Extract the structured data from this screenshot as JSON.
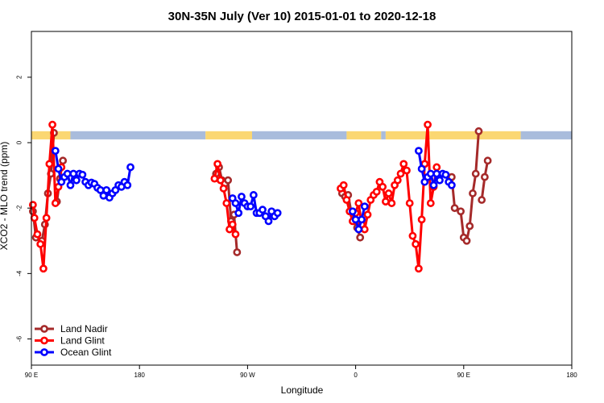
{
  "chart_data": {
    "type": "line",
    "title": "30N-35N July (Ver 10)   2015-01-01 to 2020-12-18",
    "xlabel": "Longitude",
    "ylabel": "XCO2 - MLO trend (ppm)",
    "xlim": [
      -90,
      270
    ],
    "ylim": [
      -6.8,
      3.4
    ],
    "x_ticks": [
      {
        "value": -90,
        "label": "90 E"
      },
      {
        "value": -18,
        "label": "180"
      },
      {
        "value": 54,
        "label": "90 W"
      },
      {
        "value": 126,
        "label": "0"
      },
      {
        "value": 198,
        "label": "90 E"
      },
      {
        "value": 270,
        "label": "180"
      }
    ],
    "y_ticks": [
      -6,
      -4,
      -2,
      0,
      2
    ],
    "legend_position": "bottom-left",
    "landmask": {
      "y_range": [
        0.1,
        0.35
      ],
      "colors": {
        "land": "#FBD772",
        "ocean": "#A9BCDC"
      },
      "segments": [
        {
          "type": "land",
          "x": [
            -90,
            -64
          ]
        },
        {
          "type": "ocean",
          "x": [
            -64,
            26
          ]
        },
        {
          "type": "land",
          "x": [
            26,
            57
          ]
        },
        {
          "type": "ocean",
          "x": [
            57,
            120
          ]
        },
        {
          "type": "land",
          "x": [
            120,
            143
          ]
        },
        {
          "type": "ocean",
          "x": [
            143,
            146
          ]
        },
        {
          "type": "land",
          "x": [
            146,
            236
          ]
        },
        {
          "type": "ocean",
          "x": [
            236,
            270
          ]
        }
      ]
    },
    "series": [
      {
        "name": "Land Nadir",
        "color": "#A52A2A",
        "segments": [
          [
            [
              -89,
              -2.1
            ],
            [
              -87,
              -2.9
            ],
            [
              -83,
              -3.0
            ],
            [
              -81,
              -2.5
            ],
            [
              -79,
              -1.55
            ],
            [
              -77,
              -0.95
            ],
            [
              -75,
              0.3
            ]
          ],
          [
            [
              -73,
              -1.8
            ],
            [
              -71,
              -1.1
            ],
            [
              -69,
              -0.55
            ]
          ],
          [
            [
              33,
              -0.95
            ],
            [
              35,
              -0.75
            ],
            [
              37,
              -1.15
            ],
            [
              39,
              -1.25
            ],
            [
              41,
              -1.15
            ],
            [
              43,
              -2.4
            ],
            [
              45,
              -2.2
            ],
            [
              47,
              -3.35
            ]
          ],
          [
            [
              117,
              -1.55
            ],
            [
              119,
              -1.65
            ],
            [
              121,
              -1.6
            ],
            [
              123,
              -2.1
            ],
            [
              125,
              -2.4
            ],
            [
              127,
              -2.6
            ],
            [
              129,
              -2.9
            ]
          ],
          [
            [
              190,
              -1.05
            ],
            [
              192,
              -2.0
            ],
            [
              196,
              -2.1
            ],
            [
              198,
              -2.9
            ],
            [
              200,
              -3.0
            ],
            [
              202,
              -2.55
            ],
            [
              204,
              -1.55
            ],
            [
              206,
              -0.95
            ],
            [
              208,
              0.35
            ]
          ],
          [
            [
              210,
              -1.75
            ],
            [
              212,
              -1.05
            ],
            [
              214,
              -0.55
            ]
          ]
        ]
      },
      {
        "name": "Land Glint",
        "color": "#FF0000",
        "segments": [
          [
            [
              -89,
              -1.9
            ],
            [
              -88,
              -2.3
            ],
            [
              -86,
              -2.8
            ],
            [
              -84,
              -3.1
            ],
            [
              -82,
              -3.85
            ],
            [
              -80,
              -2.3
            ],
            [
              -78,
              -0.65
            ],
            [
              -76,
              0.55
            ],
            [
              -74,
              -1.85
            ],
            [
              -72,
              -1.35
            ],
            [
              -70,
              -0.75
            ]
          ],
          [
            [
              32,
              -1.1
            ],
            [
              34,
              -0.65
            ],
            [
              36,
              -1.15
            ],
            [
              38,
              -1.4
            ],
            [
              40,
              -1.85
            ],
            [
              42,
              -2.65
            ],
            [
              44,
              -2.5
            ],
            [
              46,
              -2.8
            ]
          ],
          [
            [
              116,
              -1.4
            ],
            [
              118,
              -1.3
            ],
            [
              120,
              -1.75
            ],
            [
              122,
              -2.1
            ],
            [
              124,
              -2.4
            ],
            [
              126,
              -2.15
            ],
            [
              128,
              -1.85
            ],
            [
              130,
              -2.5
            ],
            [
              132,
              -2.65
            ],
            [
              134,
              -2.2
            ],
            [
              136,
              -1.75
            ],
            [
              138,
              -1.6
            ],
            [
              140,
              -1.5
            ],
            [
              142,
              -1.2
            ],
            [
              144,
              -1.35
            ],
            [
              146,
              -1.8
            ],
            [
              148,
              -1.55
            ],
            [
              150,
              -1.85
            ],
            [
              152,
              -1.3
            ],
            [
              154,
              -1.15
            ],
            [
              156,
              -0.95
            ],
            [
              158,
              -0.65
            ],
            [
              160,
              -0.85
            ],
            [
              162,
              -1.85
            ],
            [
              164,
              -2.85
            ],
            [
              166,
              -3.1
            ],
            [
              168,
              -3.85
            ],
            [
              170,
              -2.35
            ],
            [
              172,
              -0.65
            ],
            [
              174,
              0.55
            ],
            [
              176,
              -1.85
            ],
            [
              178,
              -1.35
            ],
            [
              180,
              -0.75
            ]
          ]
        ]
      },
      {
        "name": "Ocean Glint",
        "color": "#0000FF",
        "segments": [
          [
            [
              -74,
              -0.25
            ],
            [
              -72,
              -0.8
            ],
            [
              -70,
              -1.2
            ],
            [
              -68,
              -1.05
            ],
            [
              -66,
              -0.95
            ],
            [
              -64,
              -1.3
            ],
            [
              -62,
              -0.95
            ],
            [
              -60,
              -1.15
            ],
            [
              -58,
              -0.95
            ],
            [
              -56,
              -0.98
            ],
            [
              -54,
              -1.2
            ],
            [
              -52,
              -1.3
            ],
            [
              -50,
              -1.22
            ],
            [
              -48,
              -1.26
            ],
            [
              -46,
              -1.38
            ],
            [
              -44,
              -1.45
            ],
            [
              -42,
              -1.62
            ],
            [
              -40,
              -1.45
            ],
            [
              -38,
              -1.68
            ],
            [
              -36,
              -1.55
            ],
            [
              -34,
              -1.45
            ],
            [
              -32,
              -1.3
            ],
            [
              -30,
              -1.35
            ],
            [
              -28,
              -1.2
            ],
            [
              -26,
              -1.3
            ],
            [
              -24,
              -0.75
            ]
          ],
          [
            [
              44,
              -1.7
            ],
            [
              46,
              -1.85
            ],
            [
              48,
              -2.15
            ],
            [
              50,
              -1.65
            ],
            [
              52,
              -1.85
            ],
            [
              54,
              -1.95
            ],
            [
              56,
              -1.95
            ],
            [
              58,
              -1.6
            ],
            [
              60,
              -2.15
            ],
            [
              62,
              -2.15
            ],
            [
              64,
              -2.05
            ],
            [
              66,
              -2.25
            ],
            [
              68,
              -2.4
            ],
            [
              70,
              -2.1
            ],
            [
              72,
              -2.25
            ],
            [
              74,
              -2.15
            ]
          ],
          [
            [
              124,
              -2.1
            ],
            [
              126,
              -2.35
            ],
            [
              128,
              -2.65
            ],
            [
              130,
              -2.35
            ],
            [
              132,
              -1.95
            ]
          ],
          [
            [
              168,
              -0.25
            ],
            [
              170,
              -0.8
            ],
            [
              172,
              -1.2
            ],
            [
              174,
              -1.05
            ],
            [
              176,
              -0.95
            ],
            [
              178,
              -1.3
            ],
            [
              180,
              -0.95
            ],
            [
              182,
              -1.15
            ],
            [
              184,
              -0.95
            ],
            [
              186,
              -0.98
            ],
            [
              188,
              -1.2
            ],
            [
              190,
              -1.3
            ]
          ]
        ]
      }
    ]
  }
}
